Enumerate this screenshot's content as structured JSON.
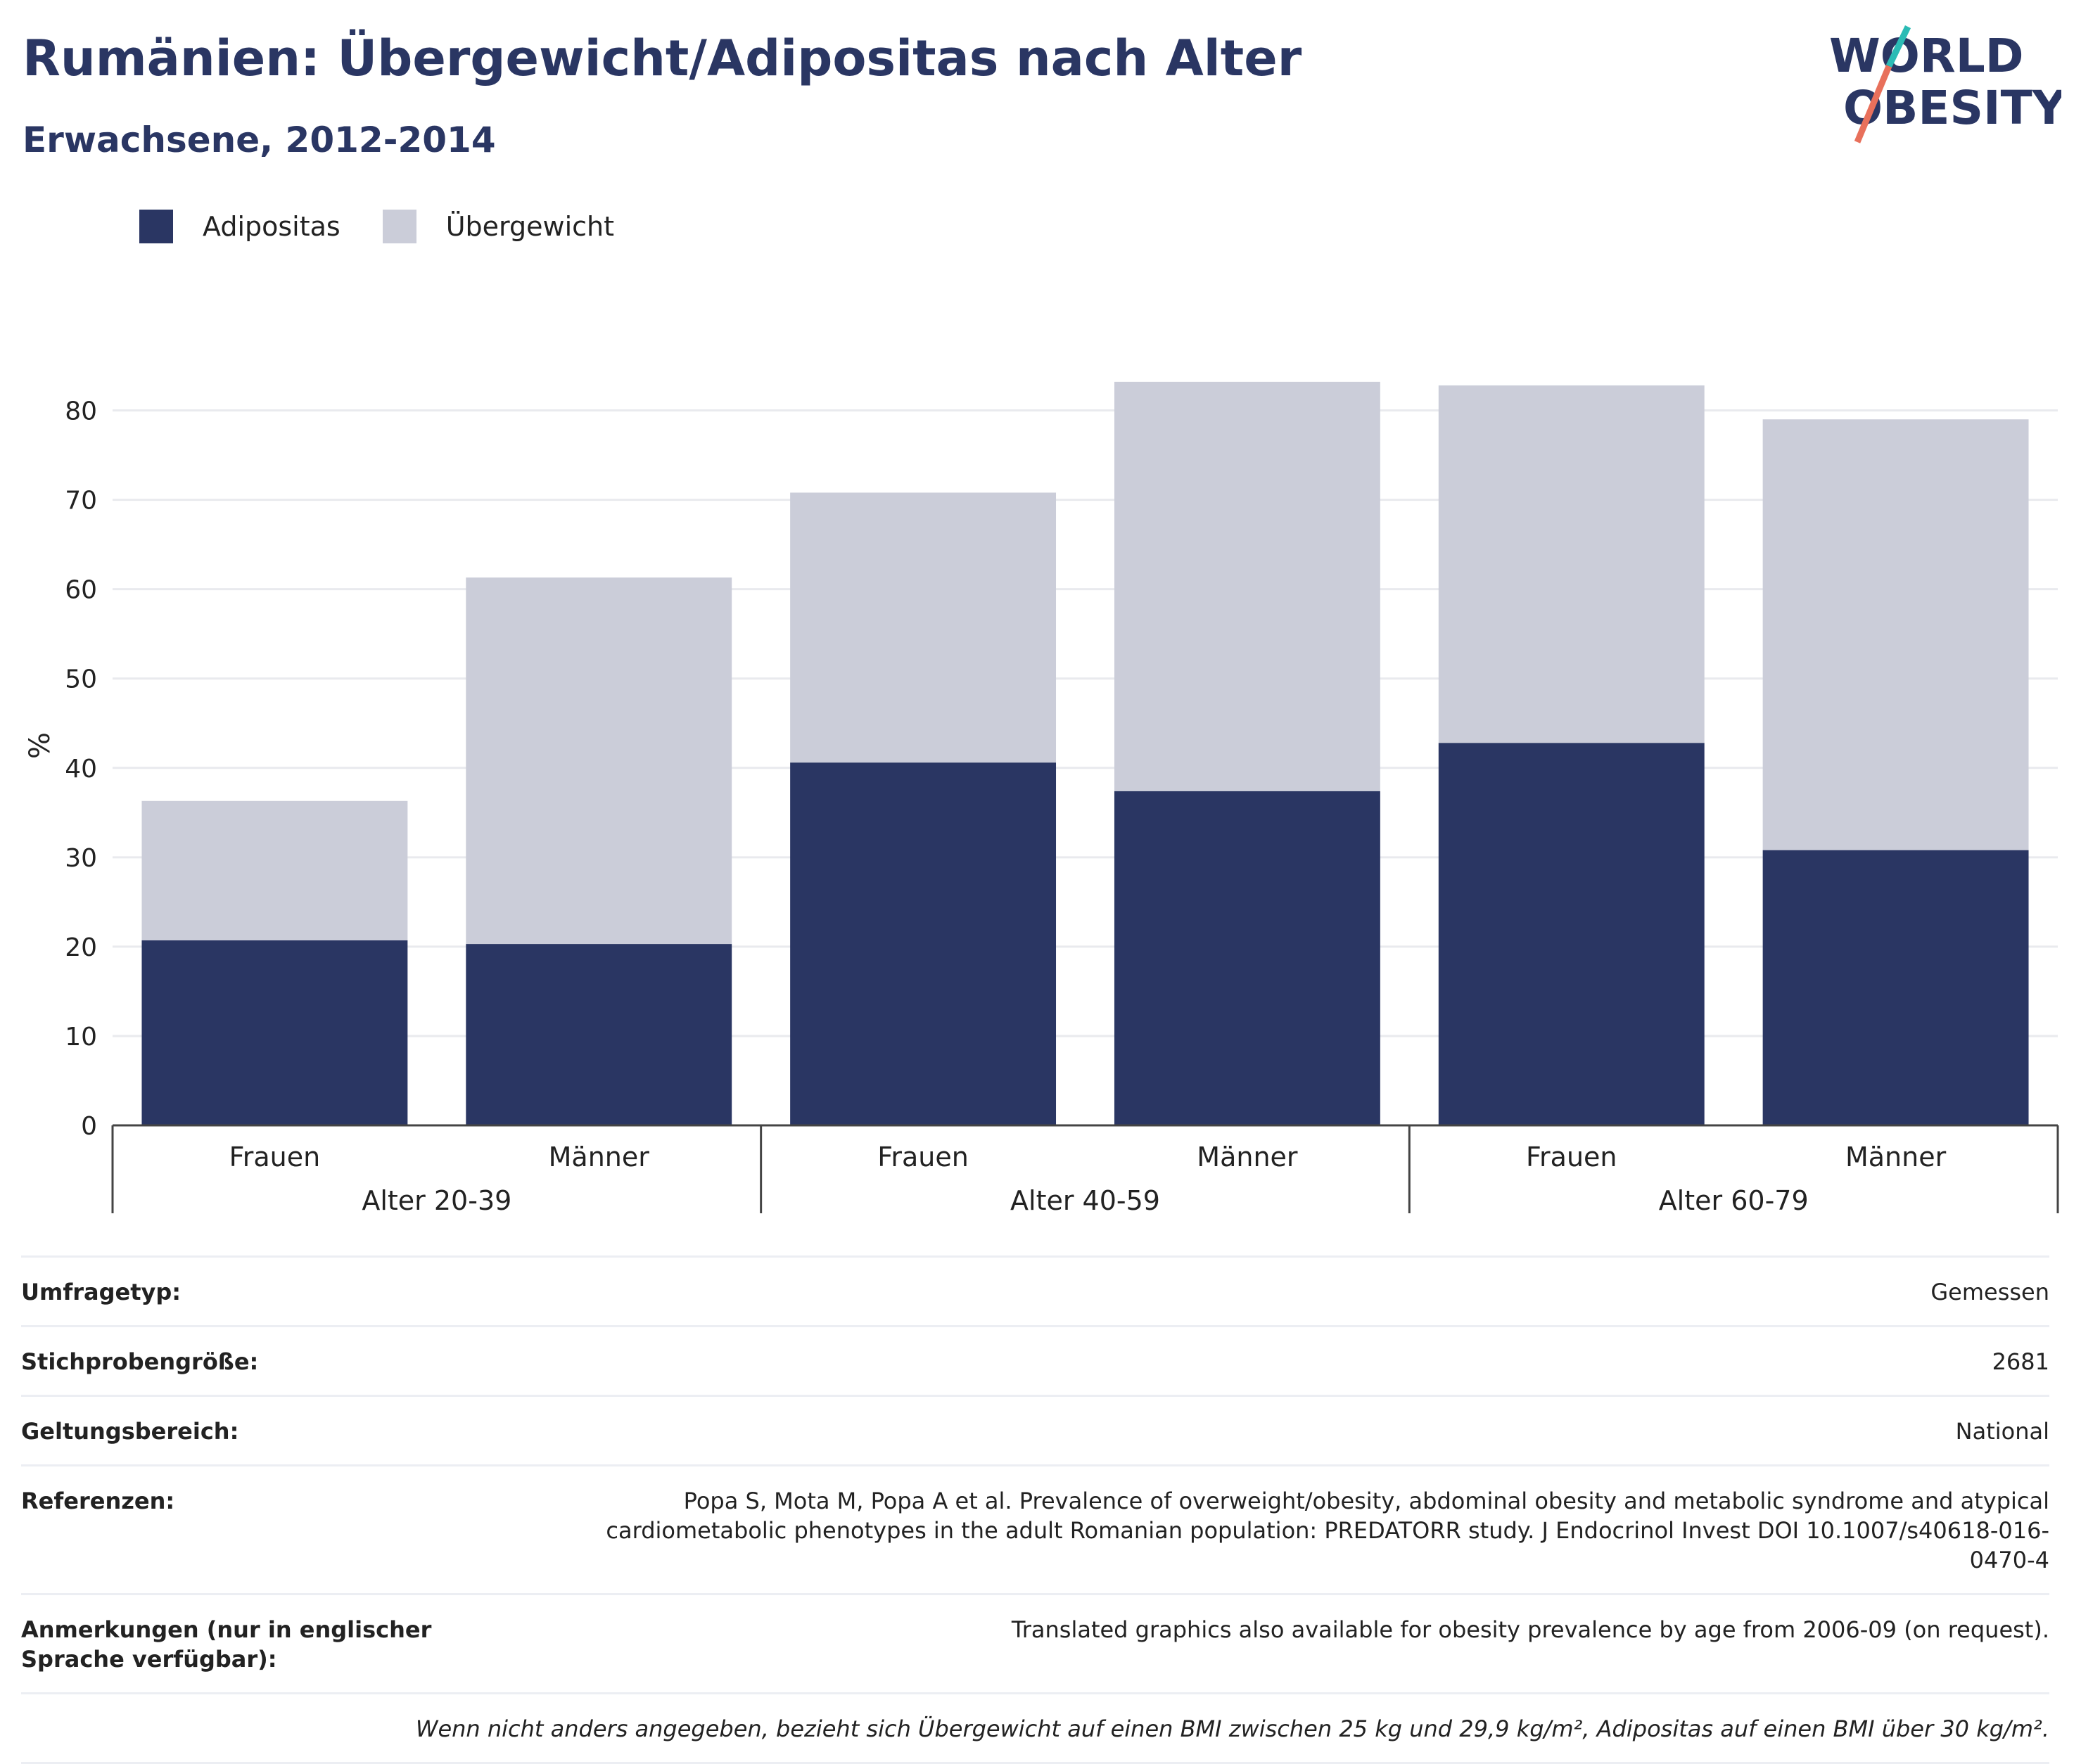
{
  "header": {
    "title": "Rumänien: Übergewicht/Adipositas nach Alter",
    "subtitle": "Erwachsene, 2012-2014"
  },
  "logo": {
    "line1": "WORLD",
    "line2": "OBESITY"
  },
  "colors": {
    "obesity": "#2a3663",
    "overweight": "#cbcdd9",
    "title": "#2a3663"
  },
  "chart_data": {
    "type": "bar",
    "stacked": true,
    "ylabel": "%",
    "ylim": [
      0,
      85
    ],
    "yticks": [
      0,
      10,
      20,
      30,
      40,
      50,
      60,
      70,
      80
    ],
    "grid": true,
    "legend_position": "top-left",
    "categories": [
      "Frauen",
      "Männer",
      "Frauen",
      "Männer",
      "Frauen",
      "Männer"
    ],
    "groups": [
      {
        "label": "Alter 20-39",
        "span": [
          0,
          1
        ]
      },
      {
        "label": "Alter 40-59",
        "span": [
          2,
          3
        ]
      },
      {
        "label": "Alter 60-79",
        "span": [
          4,
          5
        ]
      }
    ],
    "series": [
      {
        "name": "Adipositas",
        "color": "#2a3663",
        "values": [
          20.7,
          20.3,
          40.6,
          37.4,
          42.8,
          30.8
        ]
      },
      {
        "name": "Übergewicht",
        "color": "#cbcdd9",
        "values": [
          15.6,
          41.0,
          30.2,
          45.8,
          40.0,
          48.2
        ]
      }
    ]
  },
  "info": {
    "rows": [
      {
        "label": "Umfragetyp:",
        "value": "Gemessen"
      },
      {
        "label": "Stichprobengröße:",
        "value": "2681"
      },
      {
        "label": "Geltungsbereich:",
        "value": "National"
      },
      {
        "label": "Referenzen:",
        "value": "Popa S, Mota M, Popa A et al. Prevalence of overweight/obesity, abdominal obesity and metabolic syndrome and atypical cardiometabolic phenotypes in the adult Romanian population: PREDATORR study. J Endocrinol Invest DOI 10.1007/s40618-016-0470-4"
      },
      {
        "label": "Anmerkungen (nur in englischer Sprache verfügbar):",
        "value": "Translated graphics also available for obesity prevalence by age from 2006-09 (on request)."
      }
    ],
    "footnote": "Wenn nicht anders angegeben, bezieht sich Übergewicht auf einen BMI zwischen 25 kg und 29,9 kg/m², Adipositas auf einen BMI über 30 kg/m²."
  }
}
